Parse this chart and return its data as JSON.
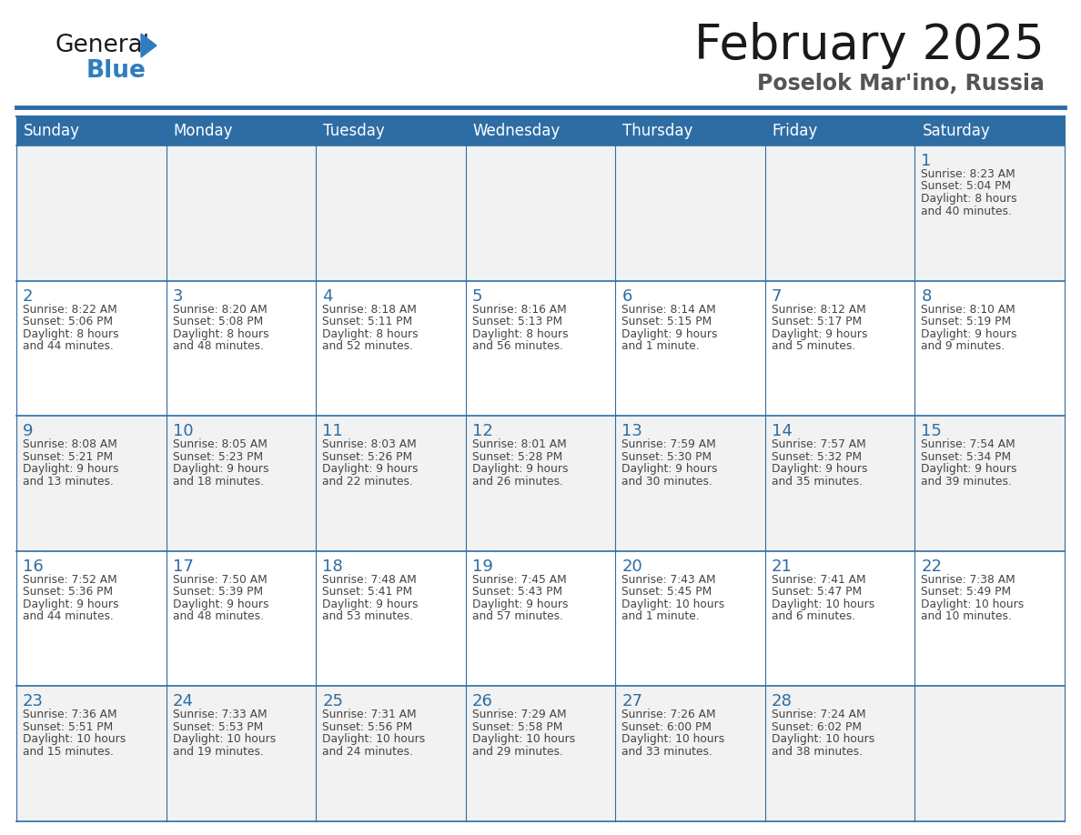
{
  "title": "February 2025",
  "subtitle": "Poselok Mar'ino, Russia",
  "days_of_week": [
    "Sunday",
    "Monday",
    "Tuesday",
    "Wednesday",
    "Thursday",
    "Friday",
    "Saturday"
  ],
  "header_bg": "#2E6DA4",
  "header_text": "#FFFFFF",
  "cell_bg_odd": "#F2F2F2",
  "cell_bg_even": "#FFFFFF",
  "border_color": "#2E6DA4",
  "day_number_color": "#2E6DA4",
  "text_color": "#444444",
  "logo_dark_color": "#1a1a1a",
  "logo_blue_color": "#2E7DBF",
  "calendar_data": [
    [
      null,
      null,
      null,
      null,
      null,
      null,
      {
        "day": 1,
        "sunrise": "8:23 AM",
        "sunset": "5:04 PM",
        "daylight": "8 hours and 40 minutes."
      }
    ],
    [
      {
        "day": 2,
        "sunrise": "8:22 AM",
        "sunset": "5:06 PM",
        "daylight": "8 hours and 44 minutes."
      },
      {
        "day": 3,
        "sunrise": "8:20 AM",
        "sunset": "5:08 PM",
        "daylight": "8 hours and 48 minutes."
      },
      {
        "day": 4,
        "sunrise": "8:18 AM",
        "sunset": "5:11 PM",
        "daylight": "8 hours and 52 minutes."
      },
      {
        "day": 5,
        "sunrise": "8:16 AM",
        "sunset": "5:13 PM",
        "daylight": "8 hours and 56 minutes."
      },
      {
        "day": 6,
        "sunrise": "8:14 AM",
        "sunset": "5:15 PM",
        "daylight": "9 hours and 1 minute."
      },
      {
        "day": 7,
        "sunrise": "8:12 AM",
        "sunset": "5:17 PM",
        "daylight": "9 hours and 5 minutes."
      },
      {
        "day": 8,
        "sunrise": "8:10 AM",
        "sunset": "5:19 PM",
        "daylight": "9 hours and 9 minutes."
      }
    ],
    [
      {
        "day": 9,
        "sunrise": "8:08 AM",
        "sunset": "5:21 PM",
        "daylight": "9 hours and 13 minutes."
      },
      {
        "day": 10,
        "sunrise": "8:05 AM",
        "sunset": "5:23 PM",
        "daylight": "9 hours and 18 minutes."
      },
      {
        "day": 11,
        "sunrise": "8:03 AM",
        "sunset": "5:26 PM",
        "daylight": "9 hours and 22 minutes."
      },
      {
        "day": 12,
        "sunrise": "8:01 AM",
        "sunset": "5:28 PM",
        "daylight": "9 hours and 26 minutes."
      },
      {
        "day": 13,
        "sunrise": "7:59 AM",
        "sunset": "5:30 PM",
        "daylight": "9 hours and 30 minutes."
      },
      {
        "day": 14,
        "sunrise": "7:57 AM",
        "sunset": "5:32 PM",
        "daylight": "9 hours and 35 minutes."
      },
      {
        "day": 15,
        "sunrise": "7:54 AM",
        "sunset": "5:34 PM",
        "daylight": "9 hours and 39 minutes."
      }
    ],
    [
      {
        "day": 16,
        "sunrise": "7:52 AM",
        "sunset": "5:36 PM",
        "daylight": "9 hours and 44 minutes."
      },
      {
        "day": 17,
        "sunrise": "7:50 AM",
        "sunset": "5:39 PM",
        "daylight": "9 hours and 48 minutes."
      },
      {
        "day": 18,
        "sunrise": "7:48 AM",
        "sunset": "5:41 PM",
        "daylight": "9 hours and 53 minutes."
      },
      {
        "day": 19,
        "sunrise": "7:45 AM",
        "sunset": "5:43 PM",
        "daylight": "9 hours and 57 minutes."
      },
      {
        "day": 20,
        "sunrise": "7:43 AM",
        "sunset": "5:45 PM",
        "daylight": "10 hours and 1 minute."
      },
      {
        "day": 21,
        "sunrise": "7:41 AM",
        "sunset": "5:47 PM",
        "daylight": "10 hours and 6 minutes."
      },
      {
        "day": 22,
        "sunrise": "7:38 AM",
        "sunset": "5:49 PM",
        "daylight": "10 hours and 10 minutes."
      }
    ],
    [
      {
        "day": 23,
        "sunrise": "7:36 AM",
        "sunset": "5:51 PM",
        "daylight": "10 hours and 15 minutes."
      },
      {
        "day": 24,
        "sunrise": "7:33 AM",
        "sunset": "5:53 PM",
        "daylight": "10 hours and 19 minutes."
      },
      {
        "day": 25,
        "sunrise": "7:31 AM",
        "sunset": "5:56 PM",
        "daylight": "10 hours and 24 minutes."
      },
      {
        "day": 26,
        "sunrise": "7:29 AM",
        "sunset": "5:58 PM",
        "daylight": "10 hours and 29 minutes."
      },
      {
        "day": 27,
        "sunrise": "7:26 AM",
        "sunset": "6:00 PM",
        "daylight": "10 hours and 33 minutes."
      },
      {
        "day": 28,
        "sunrise": "7:24 AM",
        "sunset": "6:02 PM",
        "daylight": "10 hours and 38 minutes."
      },
      null
    ]
  ]
}
